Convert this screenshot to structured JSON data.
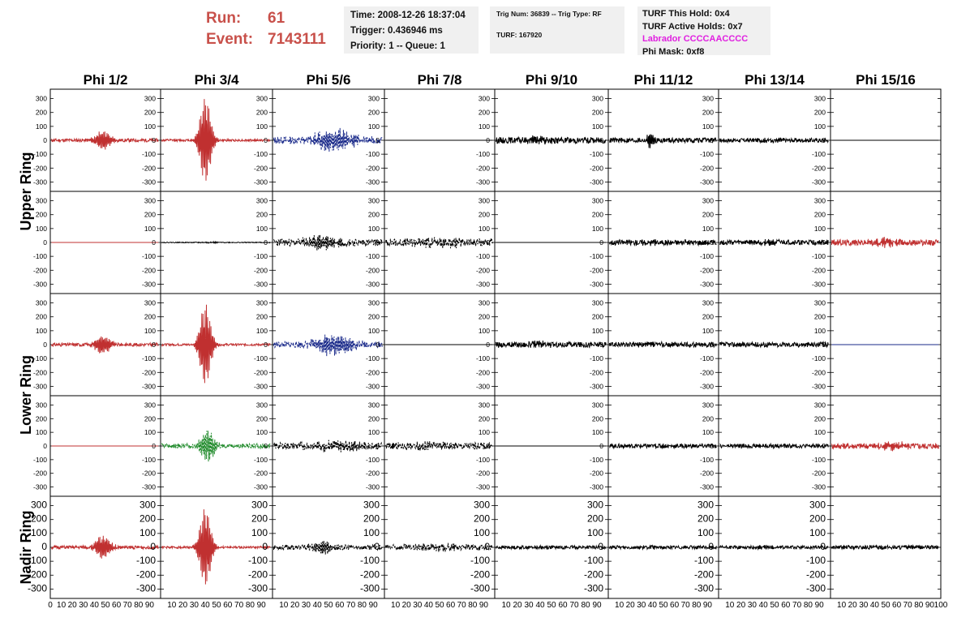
{
  "header": {
    "run_label": "Run:",
    "run_value": "61",
    "event_label": "Event:",
    "event_value": "7143111",
    "time": "Time: 2008-12-26 18:37:04",
    "trigger": "Trigger: 0.436946 ms",
    "priority": "Priority: 1 -- Queue: 1",
    "trig_num": "Trig Num: 36839 -- Trig Type: RF",
    "turf": "TURF: 167920",
    "turf_this_hold": "TURF This Hold: 0x4",
    "turf_active_holds": "TURF Active Holds: 0x7",
    "labrador": "Labrador CCCCAACCCC",
    "phi_mask": "Phi Mask: 0xf8"
  },
  "colors": {
    "red": "#c03030",
    "black": "#000000",
    "blue": "#1a2a8a",
    "green": "#1f8a2a",
    "header_red": "#c8504a",
    "magenta": "#e020e0"
  },
  "chart_data": {
    "type": "line",
    "columns": [
      "Phi 1/2",
      "Phi 3/4",
      "Phi 5/6",
      "Phi 7/8",
      "Phi 9/10",
      "Phi 11/12",
      "Phi 13/14",
      "Phi 15/16"
    ],
    "ring_labels": [
      "Upper Ring",
      "Lower Ring",
      "Nadir Ring"
    ],
    "ylim": [
      -350,
      350
    ],
    "y_ticks": [
      300,
      200,
      100,
      0,
      -100,
      -200,
      -300
    ],
    "xlim": [
      0,
      100
    ],
    "x_ticks": [
      0,
      10,
      20,
      30,
      40,
      50,
      60,
      70,
      80,
      90,
      100
    ],
    "panels": [
      [
        {
          "color": "red",
          "style": "solid",
          "amp": 12,
          "burst_center": 48,
          "burst_width": 8,
          "burst_amp": 65,
          "seed": 11
        },
        {
          "color": "red",
          "style": "solid",
          "amp": 8,
          "burst_center": 40,
          "burst_width": 6,
          "burst_amp": 300,
          "seed": 12
        },
        {
          "color": "blue",
          "style": "dashed",
          "amp": 25,
          "burst_center": 55,
          "burst_width": 20,
          "burst_amp": 70,
          "seed": 13
        },
        {
          "color": "black",
          "style": "solid",
          "amp": 0,
          "burst_center": 0,
          "burst_width": 1,
          "burst_amp": 0,
          "seed": 14
        },
        {
          "color": "black",
          "style": "solid",
          "amp": 22,
          "burst_center": 40,
          "burst_width": 10,
          "burst_amp": 20,
          "seed": 15
        },
        {
          "color": "black",
          "style": "solid",
          "amp": 18,
          "burst_center": 38,
          "burst_width": 3,
          "burst_amp": 55,
          "seed": 16
        },
        {
          "color": "black",
          "style": "solid",
          "amp": 15,
          "burst_center": 50,
          "burst_width": 10,
          "burst_amp": 10,
          "seed": 17
        },
        {
          "color": "black",
          "style": "solid",
          "amp": 0,
          "burst_center": 0,
          "burst_width": 1,
          "burst_amp": 0,
          "seed": 18
        }
      ],
      [
        {
          "color": "red",
          "style": "solid",
          "amp": 0,
          "burst_center": 0,
          "burst_width": 1,
          "burst_amp": 0,
          "seed": 21
        },
        {
          "color": "black",
          "style": "solid",
          "amp": 3,
          "burst_center": 45,
          "burst_width": 10,
          "burst_amp": 3,
          "seed": 22
        },
        {
          "color": "black",
          "style": "dashed",
          "amp": 25,
          "burst_center": 45,
          "burst_width": 18,
          "burst_amp": 40,
          "seed": 23
        },
        {
          "color": "black",
          "style": "dashed",
          "amp": 28,
          "burst_center": 50,
          "burst_width": 25,
          "burst_amp": 20,
          "seed": 24
        },
        {
          "color": "black",
          "style": "solid",
          "amp": 0,
          "burst_center": 0,
          "burst_width": 1,
          "burst_amp": 0,
          "seed": 25
        },
        {
          "color": "black",
          "style": "solid",
          "amp": 20,
          "burst_center": 40,
          "burst_width": 10,
          "burst_amp": 10,
          "seed": 26
        },
        {
          "color": "black",
          "style": "solid",
          "amp": 18,
          "burst_center": 45,
          "burst_width": 10,
          "burst_amp": 10,
          "seed": 27
        },
        {
          "color": "red",
          "style": "solid",
          "amp": 22,
          "burst_center": 50,
          "burst_width": 10,
          "burst_amp": 25,
          "seed": 28
        }
      ],
      [
        {
          "color": "red",
          "style": "solid",
          "amp": 12,
          "burst_center": 48,
          "burst_width": 8,
          "burst_amp": 65,
          "seed": 31
        },
        {
          "color": "red",
          "style": "solid",
          "amp": 8,
          "burst_center": 40,
          "burst_width": 6,
          "burst_amp": 290,
          "seed": 32
        },
        {
          "color": "blue",
          "style": "dashed",
          "amp": 22,
          "burst_center": 55,
          "burst_width": 18,
          "burst_amp": 70,
          "seed": 33
        },
        {
          "color": "black",
          "style": "solid",
          "amp": 0,
          "burst_center": 0,
          "burst_width": 1,
          "burst_amp": 0,
          "seed": 34
        },
        {
          "color": "black",
          "style": "solid",
          "amp": 20,
          "burst_center": 40,
          "burst_width": 10,
          "burst_amp": 15,
          "seed": 35
        },
        {
          "color": "black",
          "style": "solid",
          "amp": 18,
          "burst_center": 40,
          "burst_width": 10,
          "burst_amp": 10,
          "seed": 36
        },
        {
          "color": "black",
          "style": "solid",
          "amp": 18,
          "burst_center": 50,
          "burst_width": 10,
          "burst_amp": 10,
          "seed": 37
        },
        {
          "color": "blue",
          "style": "solid",
          "amp": 0,
          "burst_center": 0,
          "burst_width": 1,
          "burst_amp": 0,
          "seed": 38
        }
      ],
      [
        {
          "color": "red",
          "style": "solid",
          "amp": 0,
          "burst_center": 0,
          "burst_width": 1,
          "burst_amp": 0,
          "seed": 41
        },
        {
          "color": "green",
          "style": "dashed",
          "amp": 18,
          "burst_center": 42,
          "burst_width": 7,
          "burst_amp": 110,
          "seed": 42
        },
        {
          "color": "black",
          "style": "dashed",
          "amp": 25,
          "burst_center": 55,
          "burst_width": 25,
          "burst_amp": 25,
          "seed": 43
        },
        {
          "color": "black",
          "style": "dashed",
          "amp": 25,
          "burst_center": 35,
          "burst_width": 25,
          "burst_amp": 15,
          "seed": 44
        },
        {
          "color": "black",
          "style": "solid",
          "amp": 0,
          "burst_center": 0,
          "burst_width": 1,
          "burst_amp": 0,
          "seed": 45
        },
        {
          "color": "black",
          "style": "solid",
          "amp": 16,
          "burst_center": 45,
          "burst_width": 10,
          "burst_amp": 5,
          "seed": 46
        },
        {
          "color": "black",
          "style": "solid",
          "amp": 15,
          "burst_center": 45,
          "burst_width": 10,
          "burst_amp": 5,
          "seed": 47
        },
        {
          "color": "red",
          "style": "solid",
          "amp": 22,
          "burst_center": 55,
          "burst_width": 15,
          "burst_amp": 20,
          "seed": 48
        }
      ],
      [
        {
          "color": "red",
          "style": "solid",
          "amp": 12,
          "burst_center": 48,
          "burst_width": 8,
          "burst_amp": 80,
          "seed": 51
        },
        {
          "color": "red",
          "style": "solid",
          "amp": 8,
          "burst_center": 40,
          "burst_width": 6,
          "burst_amp": 280,
          "seed": 52
        },
        {
          "color": "black",
          "style": "dashed",
          "amp": 18,
          "burst_center": 45,
          "burst_width": 10,
          "burst_amp": 45,
          "seed": 53
        },
        {
          "color": "black",
          "style": "dashed",
          "amp": 20,
          "burst_center": 50,
          "burst_width": 25,
          "burst_amp": 15,
          "seed": 54
        },
        {
          "color": "black",
          "style": "solid",
          "amp": 12,
          "burst_center": 40,
          "burst_width": 10,
          "burst_amp": 5,
          "seed": 55
        },
        {
          "color": "black",
          "style": "solid",
          "amp": 12,
          "burst_center": 40,
          "burst_width": 10,
          "burst_amp": 5,
          "seed": 56
        },
        {
          "color": "black",
          "style": "solid",
          "amp": 12,
          "burst_center": 40,
          "burst_width": 10,
          "burst_amp": 5,
          "seed": 57
        },
        {
          "color": "black",
          "style": "solid",
          "amp": 14,
          "burst_center": 40,
          "burst_width": 10,
          "burst_amp": 5,
          "seed": 58
        }
      ]
    ]
  }
}
